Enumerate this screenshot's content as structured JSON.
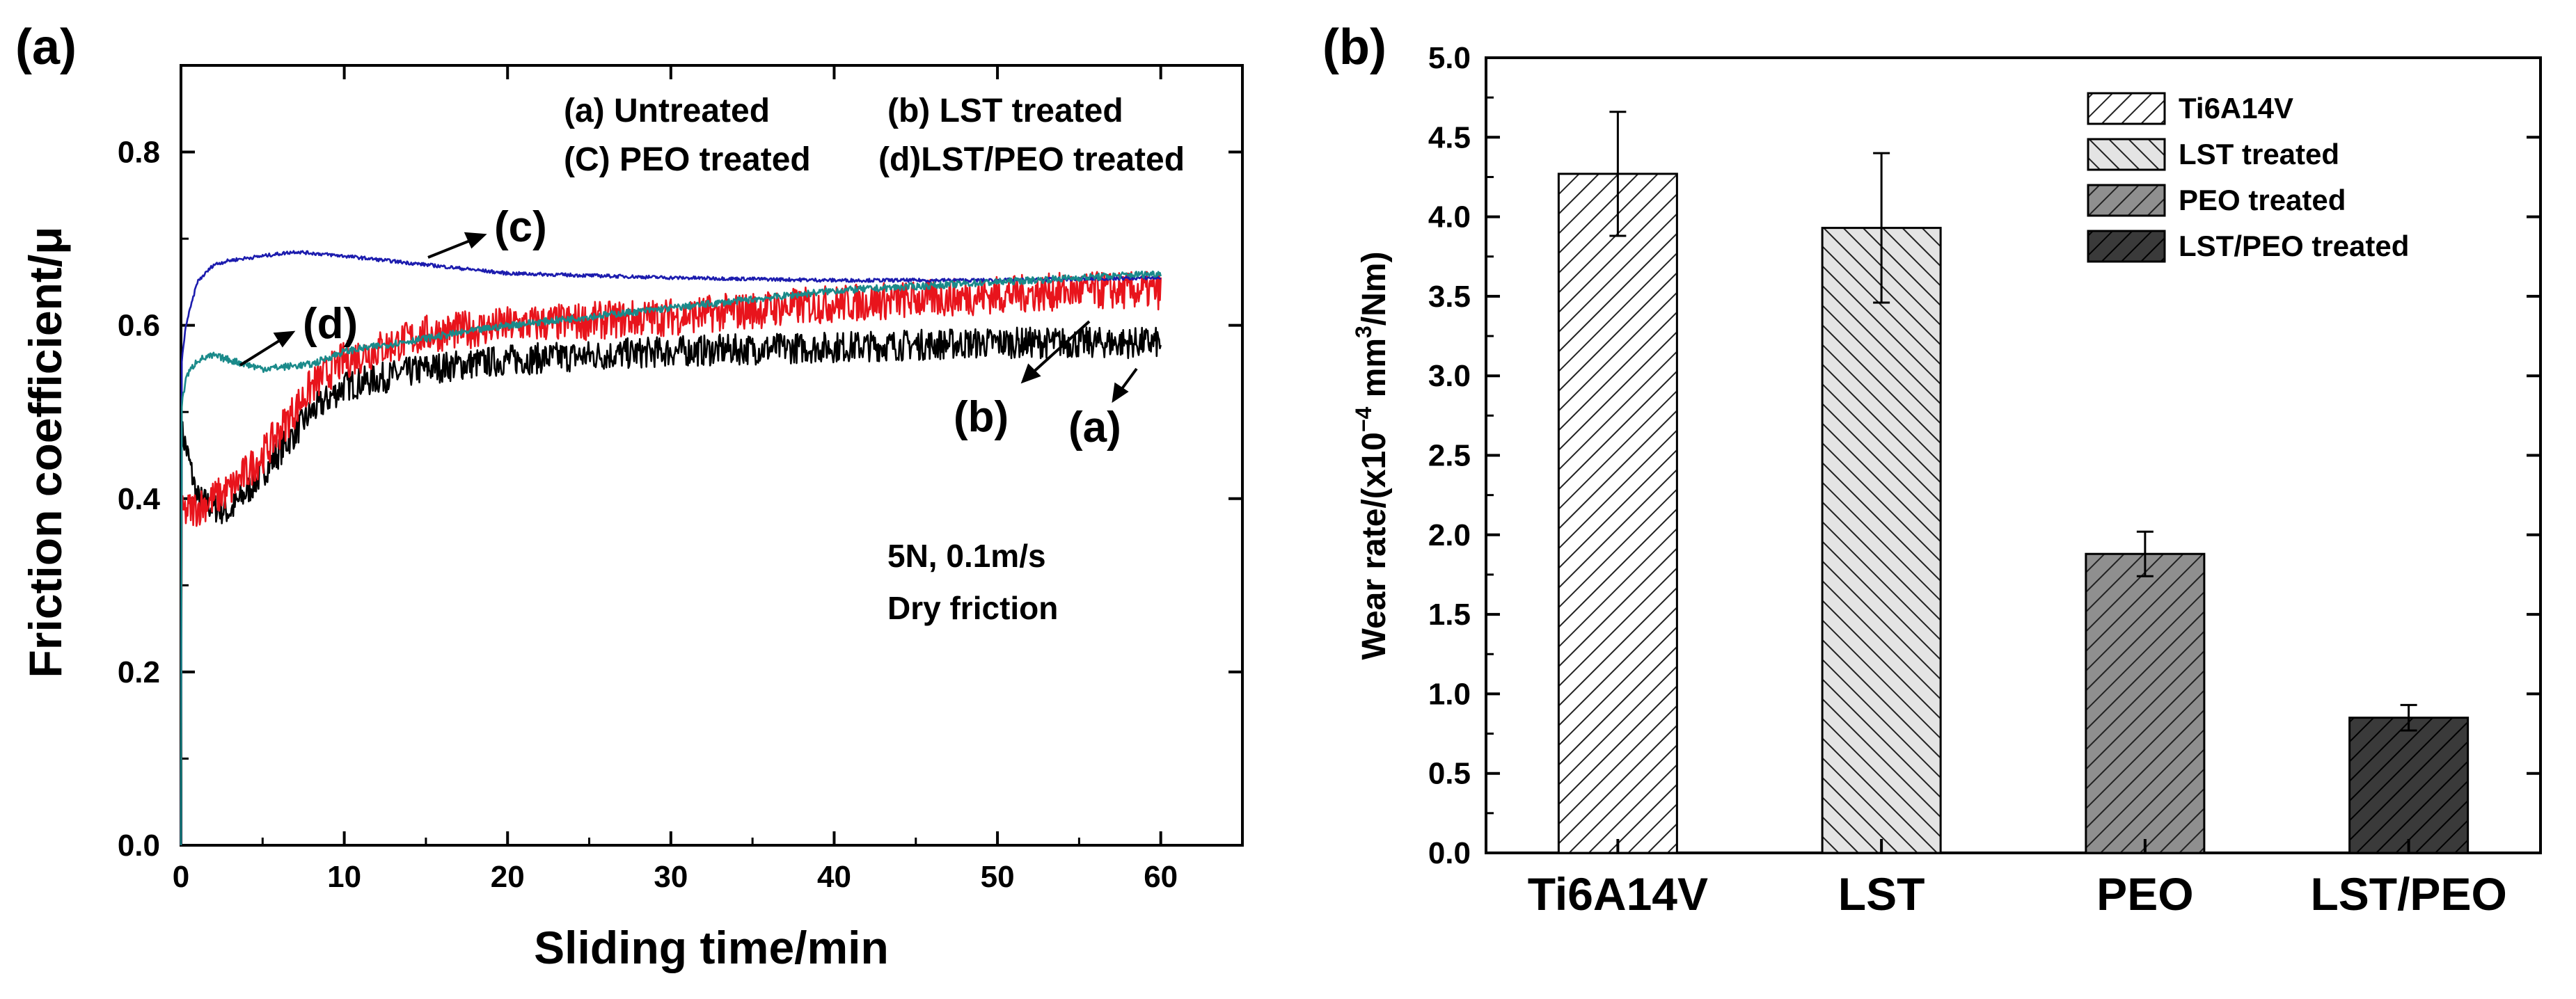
{
  "chart_data": [
    {
      "panel_label": "(a)",
      "type": "line",
      "xlabel": "Sliding time/min",
      "ylabel": "Friction coefficient/μ",
      "xlim": [
        0,
        65
      ],
      "ylim": [
        0,
        0.9
      ],
      "xticks": [
        "0",
        "10",
        "20",
        "30",
        "40",
        "50",
        "60"
      ],
      "yticks": [
        "0.0",
        "0.2",
        "0.4",
        "0.6",
        "0.8"
      ],
      "legend_text": [
        "(a) Untreated",
        "(b) LST treated",
        "(C) PEO treated",
        "(d)LST/PEO treated"
      ],
      "conditions": [
        "5N, 0.1m/s",
        "Dry friction"
      ],
      "curve_labels": [
        "(a)",
        "(b)",
        "(c)",
        "(d)"
      ],
      "series": [
        {
          "name": "(a) Untreated",
          "color": "#000000",
          "x": [
            0,
            0.3,
            1,
            2,
            3,
            5,
            8,
            10,
            15,
            20,
            30,
            40,
            50,
            60
          ],
          "y": [
            0.48,
            0.46,
            0.4,
            0.39,
            0.385,
            0.43,
            0.5,
            0.53,
            0.55,
            0.56,
            0.57,
            0.575,
            0.58,
            0.58
          ]
        },
        {
          "name": "(b) LST treated",
          "color": "#e8141c",
          "x": [
            0,
            0.3,
            1,
            2,
            3,
            5,
            8,
            10,
            15,
            20,
            30,
            40,
            50,
            55,
            60
          ],
          "y": [
            0.38,
            0.385,
            0.39,
            0.4,
            0.41,
            0.45,
            0.53,
            0.56,
            0.59,
            0.6,
            0.61,
            0.625,
            0.635,
            0.64,
            0.64
          ]
        },
        {
          "name": "(C) PEO treated",
          "color": "#1c1cae",
          "x": [
            0,
            0.3,
            1,
            2,
            3,
            5,
            7,
            10,
            15,
            20,
            30,
            40,
            50,
            60
          ],
          "y": [
            0.55,
            0.6,
            0.65,
            0.67,
            0.675,
            0.68,
            0.685,
            0.68,
            0.67,
            0.66,
            0.655,
            0.652,
            0.652,
            0.655
          ]
        },
        {
          "name": "(d)LST/PEO treated",
          "color": "#1a8a8a",
          "x": [
            0,
            0.3,
            1,
            2,
            3,
            5,
            8,
            10,
            15,
            20,
            30,
            40,
            50,
            60
          ],
          "y": [
            0.5,
            0.54,
            0.56,
            0.565,
            0.56,
            0.55,
            0.555,
            0.57,
            0.585,
            0.6,
            0.62,
            0.64,
            0.65,
            0.66
          ]
        }
      ]
    },
    {
      "panel_label": "(b)",
      "type": "bar",
      "categories": [
        "Ti6A14V",
        "LST",
        "PEO",
        "LST/PEO"
      ],
      "values": [
        4.27,
        3.93,
        1.88,
        0.85
      ],
      "errors": [
        0.39,
        0.47,
        0.14,
        0.08
      ],
      "ylabel_parts": [
        "Wear rate/(x10",
        "−4",
        " mm",
        "3",
        "/Nm)"
      ],
      "ylim": [
        0,
        5
      ],
      "yticks": [
        "0.0",
        "0.5",
        "1.0",
        "1.5",
        "2.0",
        "2.5",
        "3.0",
        "3.5",
        "4.0",
        "4.5",
        "5.0"
      ],
      "legend": [
        "Ti6A14V",
        "LST treated",
        "PEO treated",
        "LST/PEO treated"
      ],
      "fill_colors": [
        "#ffffff",
        "#e4e4e4",
        "#8f8f8f",
        "#3a3a3a"
      ]
    }
  ]
}
